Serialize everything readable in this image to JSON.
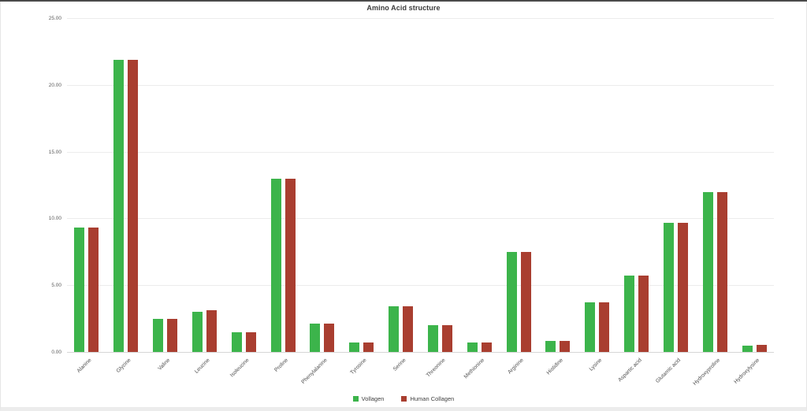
{
  "chart_data": {
    "type": "bar",
    "title": "Amino Acid structure",
    "categories": [
      "Alanine",
      "Glycine",
      "Valine",
      "Leucine",
      "Isoleucine",
      "Proline",
      "Phenylalanine",
      "Tyrosine",
      "Serine",
      "Threonine",
      "Methionine",
      "Arginine",
      "Histidine",
      "Lysine",
      "Aspartic acid",
      "Glutamic acid",
      "Hydroxyproline",
      "Hydroxylysine"
    ],
    "series": [
      {
        "name": "Vollagen",
        "color": "#3cb44b",
        "values": [
          9.3,
          21.9,
          2.5,
          3.0,
          1.5,
          13.0,
          2.1,
          0.7,
          3.4,
          2.0,
          0.7,
          7.5,
          0.8,
          3.7,
          5.7,
          9.7,
          12.0,
          0.5
        ]
      },
      {
        "name": "Human Collagen",
        "color": "#a93e30",
        "values": [
          9.3,
          21.9,
          2.5,
          3.1,
          1.5,
          13.0,
          2.1,
          0.7,
          3.4,
          2.0,
          0.7,
          7.5,
          0.8,
          3.7,
          5.7,
          9.7,
          12.0,
          0.55
        ]
      }
    ],
    "ylim": [
      0,
      25
    ],
    "yticks": [
      "0.00",
      "5.00",
      "10.00",
      "15.00",
      "20.00",
      "25.00"
    ],
    "grid": true,
    "legend_position": "bottom"
  }
}
